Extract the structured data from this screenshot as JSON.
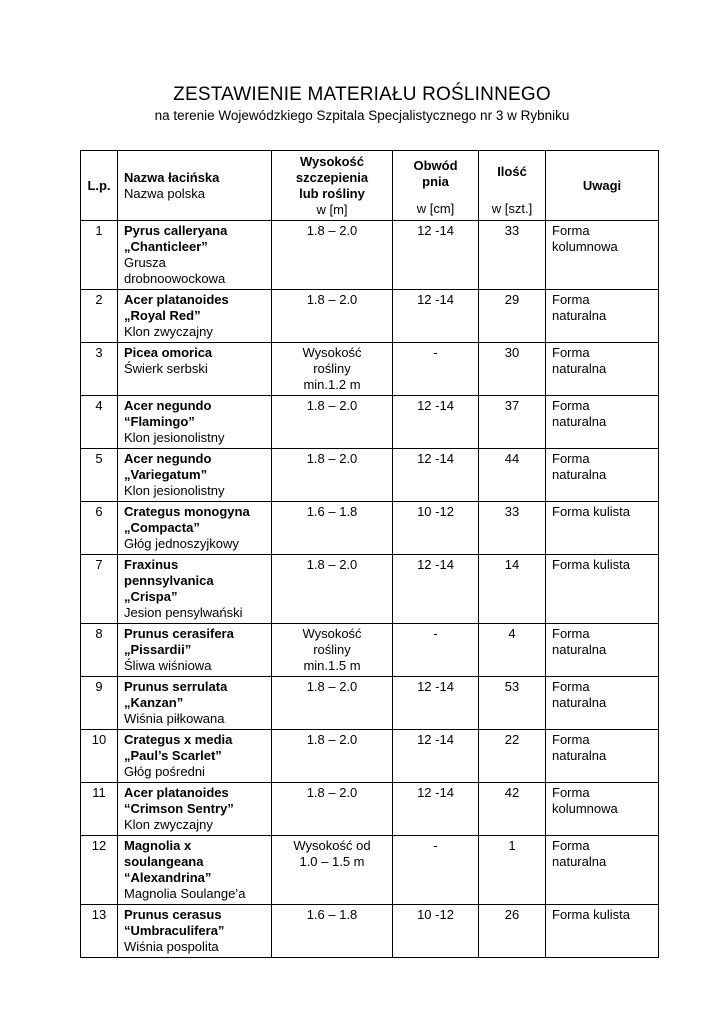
{
  "page": {
    "title": "ZESTAWIENIE MATERIAŁU ROŚLINNEGO",
    "subtitle": "na terenie Wojewódzkiego Szpitala Specjalistycznego nr 3 w Rybniku"
  },
  "table": {
    "headers": {
      "lp": "L.p.",
      "name_latin": "Nazwa łacińska",
      "name_polish": "Nazwa polska",
      "height_main": "Wysokość\nszczepienia\nlub rośliny",
      "height_unit": "w [m]",
      "girth_main": "Obwód\npnia",
      "girth_unit": "w [cm]",
      "qty_main": "Ilość",
      "qty_unit": "w [szt.]",
      "notes": "Uwagi"
    },
    "rows": [
      {
        "lp": "1",
        "latin": "Pyrus calleryana\n„Chanticleer”",
        "polish": "Grusza\ndrobnoowockowa",
        "height": "1.8 – 2.0",
        "girth": "12 -14",
        "qty": "33",
        "notes": "Forma\nkolumnowa"
      },
      {
        "lp": "2",
        "latin": "Acer platanoides\n„Royal Red”",
        "polish": "Klon zwyczajny",
        "height": "1.8 – 2.0",
        "girth": "12 -14",
        "qty": "29",
        "notes": "Forma\nnaturalna"
      },
      {
        "lp": "3",
        "latin": "Picea omorica",
        "polish": "Świerk serbski",
        "height": "Wysokość\nrośliny\nmin.1.2 m",
        "girth": "-",
        "qty": "30",
        "notes": "Forma\nnaturalna"
      },
      {
        "lp": "4",
        "latin": "Acer negundo\n“Flamingo”",
        "polish": "Klon jesionolistny",
        "height": "1.8 – 2.0",
        "girth": "12 -14",
        "qty": "37",
        "notes": "Forma\nnaturalna"
      },
      {
        "lp": "5",
        "latin": "Acer negundo\n„Variegatum”",
        "polish": "Klon jesionolistny",
        "height": "1.8 – 2.0",
        "girth": "12 -14",
        "qty": "44",
        "notes": "Forma\nnaturalna"
      },
      {
        "lp": "6",
        "latin": "Crategus monogyna\n„Compacta”",
        "polish": "Głóg jednoszyjkowy",
        "height": "1.6 – 1.8",
        "girth": "10 -12",
        "qty": "33",
        "notes": "Forma kulista"
      },
      {
        "lp": "7",
        "latin": "Fraxinus\npennsylvanica\n„Crispa”",
        "polish": "Jesion pensylwański",
        "height": "1.8 – 2.0",
        "girth": "12 -14",
        "qty": "14",
        "notes": "Forma kulista"
      },
      {
        "lp": "8",
        "latin": "Prunus cerasifera\n„Pissardii”",
        "polish": "Śliwa wiśniowa",
        "height": "Wysokość\nrośliny\nmin.1.5 m",
        "girth": "-",
        "qty": "4",
        "notes": "Forma\nnaturalna"
      },
      {
        "lp": "9",
        "latin": "Prunus serrulata\n„Kanzan”",
        "polish": "Wiśnia piłkowana",
        "height": "1.8 – 2.0",
        "girth": "12 -14",
        "qty": "53",
        "notes": "Forma\nnaturalna"
      },
      {
        "lp": "10",
        "latin": "Crategus x media\n„Paul’s Scarlet”",
        "polish": "Głóg pośredni",
        "height": "1.8 – 2.0",
        "girth": "12 -14",
        "qty": "22",
        "notes": "Forma\nnaturalna"
      },
      {
        "lp": "11",
        "latin": "Acer platanoides\n“Crimson Sentry”",
        "polish": "Klon zwyczajny",
        "height": "1.8 – 2.0",
        "girth": "12 -14",
        "qty": "42",
        "notes": "Forma\nkolumnowa"
      },
      {
        "lp": "12",
        "latin": "Magnolia x\nsoulangeana\n“Alexandrina”",
        "polish": "Magnolia Soulange’a",
        "height": "Wysokość od\n1.0 – 1.5 m",
        "girth": "-",
        "qty": "1",
        "notes": "Forma\nnaturalna"
      },
      {
        "lp": "13",
        "latin": "Prunus cerasus\n“Umbraculifera”",
        "polish": "Wiśnia pospolita",
        "height": "1.6 – 1.8",
        "girth": "10 -12",
        "qty": "26",
        "notes": "Forma kulista"
      }
    ]
  }
}
